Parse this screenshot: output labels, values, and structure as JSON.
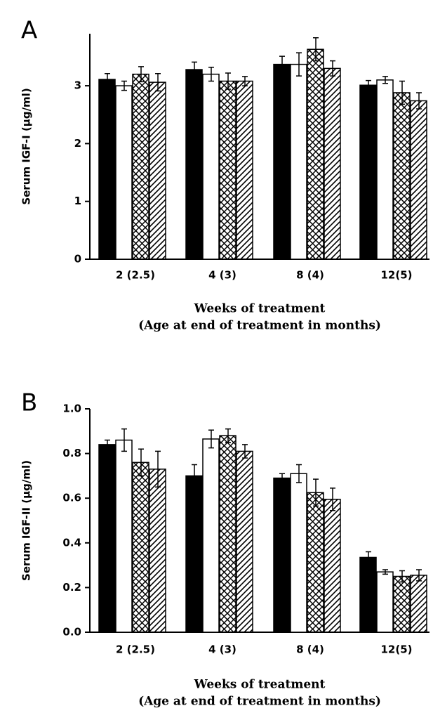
{
  "chart_data": [
    {
      "type": "bar",
      "label": "A",
      "ylabel": "Serum IGF-I (μg/ml)",
      "xlabel": [
        "Weeks of treatment",
        "(Age at end of treatment in months)"
      ],
      "categories": [
        "2 (2.5)",
        "4 (3)",
        "8 (4)",
        "12(5)"
      ],
      "ylim": [
        0,
        3.9
      ],
      "yticks": [
        0,
        1,
        2,
        3
      ],
      "series": [
        {
          "color": "#000000",
          "pattern": "solid",
          "values": [
            3.11,
            3.28,
            3.37,
            3.01
          ],
          "errors": [
            0.1,
            0.13,
            0.14,
            0.08
          ]
        },
        {
          "color": "#000000",
          "pattern": "none",
          "values": [
            3.0,
            3.2,
            3.37,
            3.1
          ],
          "errors": [
            0.08,
            0.12,
            0.2,
            0.06
          ]
        },
        {
          "color": "#000000",
          "pattern": "crosshatch",
          "values": [
            3.2,
            3.08,
            3.63,
            2.88
          ],
          "errors": [
            0.13,
            0.14,
            0.2,
            0.2
          ]
        },
        {
          "color": "#000000",
          "pattern": "hatch",
          "values": [
            3.06,
            3.08,
            3.3,
            2.74
          ],
          "errors": [
            0.15,
            0.08,
            0.13,
            0.14
          ]
        }
      ]
    },
    {
      "type": "bar",
      "label": "B",
      "ylabel": "Serum IGF-II (μg/ml)",
      "xlabel": [
        "Weeks of treatment",
        "(Age at end of treatment in months)"
      ],
      "categories": [
        "2 (2.5)",
        "4 (3)",
        "8 (4)",
        "12(5)"
      ],
      "ylim": [
        0,
        1.0
      ],
      "yticks": [
        {
          "value": 0,
          "label": "0.0"
        },
        0.2,
        0.4,
        0.6,
        0.8,
        {
          "value": 1.0,
          "label": "1.0"
        }
      ],
      "series": [
        {
          "color": "#000000",
          "pattern": "solid",
          "values": [
            0.84,
            0.7,
            0.69,
            0.335
          ],
          "errors": [
            0.02,
            0.05,
            0.02,
            0.025
          ]
        },
        {
          "color": "#000000",
          "pattern": "none",
          "values": [
            0.86,
            0.865,
            0.71,
            0.27
          ],
          "errors": [
            0.05,
            0.04,
            0.04,
            0.01
          ]
        },
        {
          "color": "#000000",
          "pattern": "crosshatch",
          "values": [
            0.76,
            0.88,
            0.625,
            0.25
          ],
          "errors": [
            0.06,
            0.03,
            0.06,
            0.025
          ]
        },
        {
          "color": "#000000",
          "pattern": "hatch",
          "values": [
            0.73,
            0.81,
            0.595,
            0.255
          ],
          "errors": [
            0.08,
            0.03,
            0.05,
            0.025
          ]
        }
      ]
    }
  ]
}
